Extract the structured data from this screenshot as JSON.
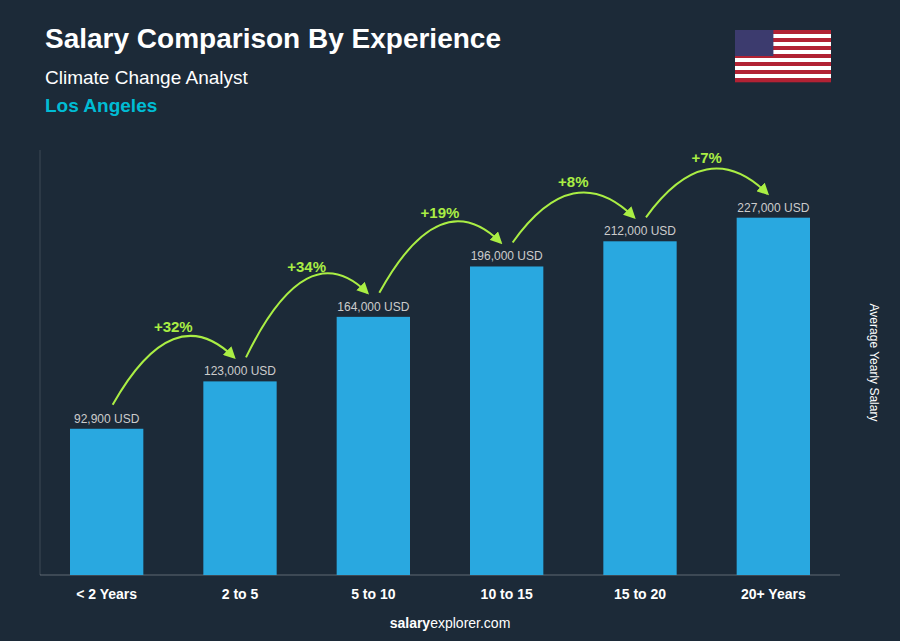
{
  "chart_data": {
    "type": "bar",
    "title": "Salary Comparison By Experience",
    "subtitle": "Climate Change Analyst",
    "city": "Los Angeles",
    "ylabel": "Average Yearly Salary",
    "footer": [
      "salary",
      "explorer.com"
    ],
    "categories": [
      "< 2 Years",
      "2 to 5",
      "5 to 10",
      "10 to 15",
      "15 to 20",
      "20+ Years"
    ],
    "values": [
      92900,
      123000,
      164000,
      196000,
      212000,
      227000
    ],
    "value_labels": [
      "92,900 USD",
      "123,000 USD",
      "164,000 USD",
      "196,000 USD",
      "212,000 USD",
      "227,000 USD"
    ],
    "data_labels": true,
    "pct_changes": [
      {
        "value": 32,
        "label": "+32%"
      },
      {
        "value": 34,
        "label": "+34%"
      },
      {
        "value": 19,
        "label": "+19%"
      },
      {
        "value": 8,
        "label": "+8%"
      },
      {
        "value": 7,
        "label": "+7%"
      }
    ],
    "color": "#29a8e0",
    "ylim": [
      0,
      270000
    ],
    "tick_labels": "x",
    "grid": false
  }
}
